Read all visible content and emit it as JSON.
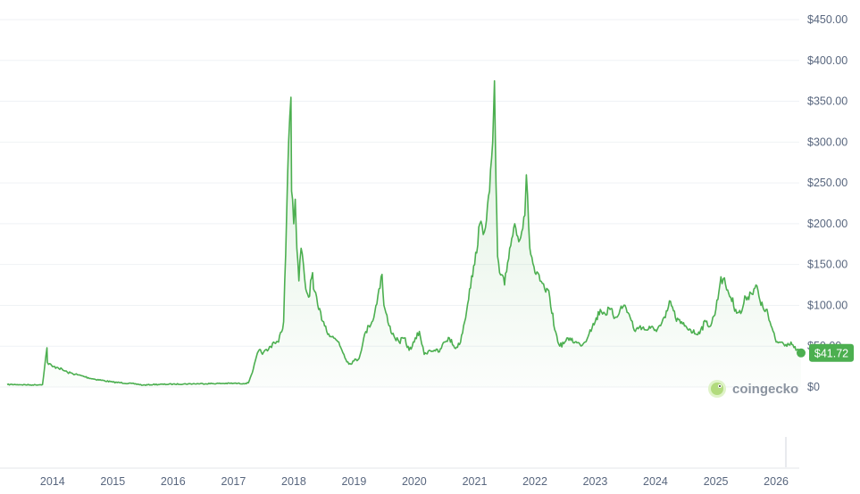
{
  "colors": {
    "line": "#4caf50",
    "badge": "#4caf50",
    "grid": "#eff2f5",
    "tick_text": "#58667e"
  },
  "watermark": {
    "brand": "coingecko",
    "icon": "gecko-logo-icon"
  },
  "chart_data": {
    "type": "line",
    "grid": true,
    "ylim": [
      0,
      450
    ],
    "xlim": [
      "2013-04",
      "2026-06"
    ],
    "y_ticks": [
      "$450.00",
      "$400.00",
      "$350.00",
      "$300.00",
      "$250.00",
      "$200.00",
      "$150.00",
      "$100.00",
      "$50.00",
      "$0"
    ],
    "y_tick_values": [
      450,
      400,
      350,
      300,
      250,
      200,
      150,
      100,
      50,
      0
    ],
    "x_ticks": [
      "2014",
      "2015",
      "2016",
      "2017",
      "2018",
      "2019",
      "2020",
      "2021",
      "2022",
      "2023",
      "2024",
      "2025",
      "2026"
    ],
    "current_price_label": "$41.72",
    "current_price": 41.72,
    "series": [
      {
        "x": [
          "2013-04",
          "2013-06",
          "2013-09",
          "2013-11",
          "2013-11-28",
          "2013-12",
          "2014-01",
          "2014-02",
          "2014-04",
          "2014-06",
          "2014-09",
          "2015-01",
          "2015-06",
          "2015-07",
          "2015-09",
          "2016-01",
          "2016-06",
          "2017-01",
          "2017-03",
          "2017-04",
          "2017-05",
          "2017-06",
          "2017-07",
          "2017-08",
          "2017-09",
          "2017-10",
          "2017-11",
          "2017-12",
          "2017-12-15",
          "2017-12-19",
          "2017-12-25",
          "2018-01",
          "2018-01-10",
          "2018-01-20",
          "2018-02",
          "2018-02-15",
          "2018-03",
          "2018-03-15",
          "2018-04",
          "2018-04-25",
          "2018-05",
          "2018-06",
          "2018-07",
          "2018-08",
          "2018-09",
          "2018-10",
          "2018-11",
          "2018-12",
          "2019-01",
          "2019-02",
          "2019-03",
          "2019-04",
          "2019-05",
          "2019-06",
          "2019-06-20",
          "2019-07",
          "2019-08",
          "2019-09",
          "2019-10",
          "2019-11",
          "2019-12",
          "2020-01",
          "2020-02",
          "2020-03",
          "2020-04",
          "2020-05",
          "2020-06",
          "2020-07",
          "2020-08",
          "2020-09",
          "2020-10",
          "2020-11",
          "2020-12",
          "2021-01",
          "2021-02",
          "2021-03",
          "2021-04",
          "2021-04-20",
          "2021-05-01",
          "2021-05-10",
          "2021-05-20",
          "2021-06",
          "2021-07",
          "2021-08",
          "2021-09",
          "2021-10",
          "2021-11",
          "2021-11-10",
          "2021-12",
          "2022-01",
          "2022-02",
          "2022-03",
          "2022-04",
          "2022-05",
          "2022-06",
          "2022-07",
          "2022-08",
          "2022-09",
          "2022-10",
          "2022-11",
          "2022-12",
          "2023-01",
          "2023-02",
          "2023-03",
          "2023-04",
          "2023-05",
          "2023-06",
          "2023-07",
          "2023-08",
          "2023-09",
          "2023-10",
          "2023-11",
          "2023-12",
          "2024-01",
          "2024-02",
          "2024-03",
          "2024-04",
          "2024-05",
          "2024-06",
          "2024-07",
          "2024-08",
          "2024-09",
          "2024-10",
          "2024-11",
          "2024-12",
          "2025-01",
          "2025-02",
          "2025-03",
          "2025-04",
          "2025-05",
          "2025-06",
          "2025-07",
          "2025-08",
          "2025-09",
          "2025-10",
          "2025-11",
          "2025-12",
          "2026-01",
          "2026-02",
          "2026-03",
          "2026-04",
          "2026-05",
          "2026-06"
        ],
        "y": [
          3,
          3,
          2.5,
          3,
          48,
          30,
          25,
          24,
          18,
          15,
          10,
          6,
          3.5,
          2.2,
          3,
          3.5,
          4,
          4.5,
          4.2,
          5,
          22,
          44,
          42,
          46,
          55,
          55,
          80,
          300,
          355,
          240,
          230,
          200,
          230,
          170,
          130,
          170,
          150,
          120,
          110,
          140,
          120,
          95,
          80,
          65,
          60,
          55,
          40,
          28,
          32,
          35,
          60,
          75,
          85,
          120,
          138,
          100,
          75,
          62,
          55,
          60,
          45,
          55,
          68,
          40,
          45,
          45,
          43,
          55,
          60,
          48,
          52,
          80,
          120,
          150,
          200,
          190,
          240,
          300,
          375,
          250,
          160,
          140,
          125,
          170,
          200,
          180,
          210,
          260,
          170,
          140,
          130,
          120,
          110,
          70,
          50,
          55,
          60,
          55,
          52,
          55,
          70,
          80,
          95,
          90,
          95,
          85,
          95,
          100,
          85,
          68,
          75,
          70,
          72,
          70,
          75,
          85,
          105,
          85,
          78,
          75,
          70,
          65,
          70,
          80,
          75,
          95,
          135,
          125,
          110,
          95,
          90,
          110,
          115,
          125,
          100,
          95,
          75,
          55,
          55,
          52,
          55,
          45,
          42
        ]
      }
    ]
  }
}
